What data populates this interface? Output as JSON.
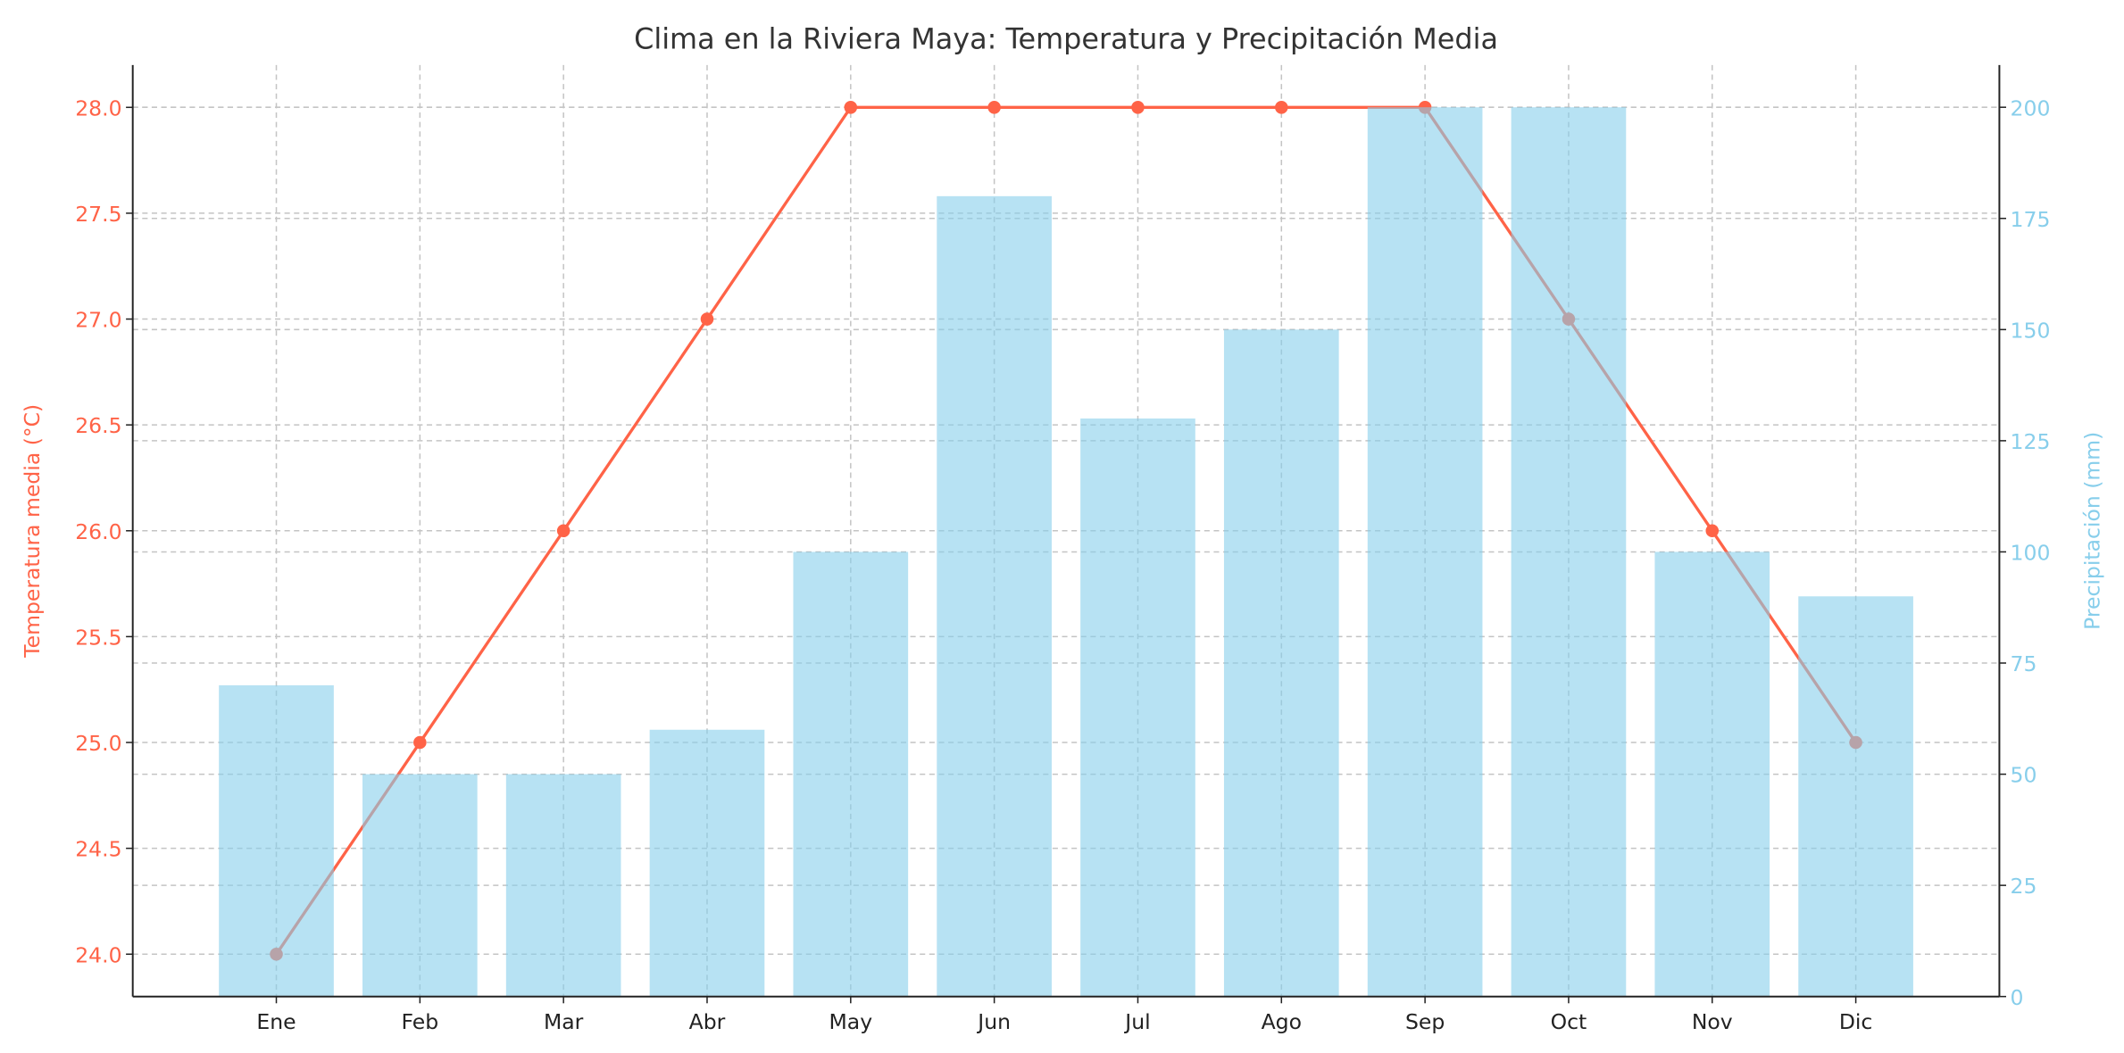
{
  "chart_data": {
    "type": "bar+line",
    "title": "Clima en la Riviera Maya: Temperatura y Precipitación Media",
    "categories": [
      "Ene",
      "Feb",
      "Mar",
      "Abr",
      "May",
      "Jun",
      "Jul",
      "Ago",
      "Sep",
      "Oct",
      "Nov",
      "Dic"
    ],
    "series": [
      {
        "name": "Temperatura media (°C)",
        "type": "line",
        "axis": "left",
        "color": "#FF6347",
        "values": [
          24,
          25,
          26,
          27,
          28,
          28,
          28,
          28,
          28,
          27,
          26,
          25
        ]
      },
      {
        "name": "Precipitación (mm)",
        "type": "bar",
        "axis": "right",
        "color": "#87CEEB",
        "values": [
          70,
          50,
          50,
          60,
          100,
          180,
          130,
          150,
          200,
          200,
          100,
          90
        ]
      }
    ],
    "ylabel_left": "Temperatura media (°C)",
    "ylabel_right": "Precipitación (mm)",
    "ylim_left": [
      23.8,
      28.2
    ],
    "ylim_right": [
      0,
      209.5
    ],
    "yticks_left": [
      "24.0",
      "24.5",
      "25.0",
      "25.5",
      "26.0",
      "26.5",
      "27.0",
      "27.5",
      "28.0"
    ],
    "yticks_right": [
      "0",
      "25",
      "50",
      "75",
      "100",
      "125",
      "150",
      "175",
      "200"
    ],
    "grid": true
  }
}
